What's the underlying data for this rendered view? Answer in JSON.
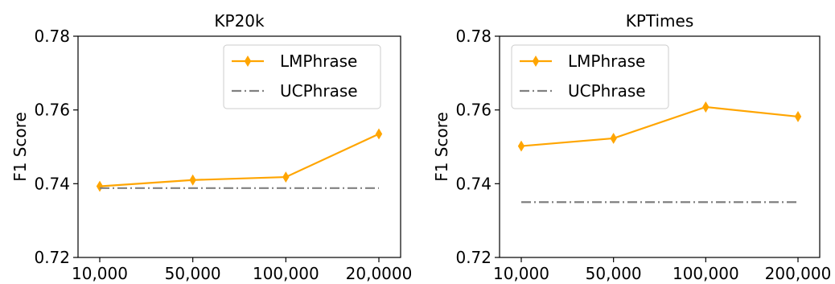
{
  "chart_data": [
    {
      "type": "line",
      "title": "KP20k",
      "xlabel": "",
      "ylabel": "F1 Score",
      "categories": [
        "10,000",
        "50,000",
        "100,000",
        "20,0000"
      ],
      "ylim": [
        0.72,
        0.78
      ],
      "yticks": [
        "0.72",
        "0.74",
        "0.76",
        "0.78"
      ],
      "series": [
        {
          "name": "LMPhrase",
          "values": [
            0.7393,
            0.741,
            0.7418,
            0.7535
          ],
          "color": "#FFA500",
          "style": "solid",
          "marker": "diamond"
        },
        {
          "name": "UCPhrase",
          "values": [
            0.7388,
            0.7388,
            0.7388,
            0.7388
          ],
          "color": "#808080",
          "style": "dashdot",
          "marker": "none"
        }
      ],
      "legend": "top-right",
      "grid": false
    },
    {
      "type": "line",
      "title": "KPTimes",
      "xlabel": "",
      "ylabel": "F1 Score",
      "categories": [
        "10,000",
        "50,000",
        "100,000",
        "200,000"
      ],
      "ylim": [
        0.72,
        0.78
      ],
      "yticks": [
        "0.72",
        "0.74",
        "0.76",
        "0.78"
      ],
      "series": [
        {
          "name": "LMPhrase",
          "values": [
            0.7502,
            0.7523,
            0.7608,
            0.7582
          ],
          "color": "#FFA500",
          "style": "solid",
          "marker": "diamond"
        },
        {
          "name": "UCPhrase",
          "values": [
            0.735,
            0.735,
            0.735,
            0.735
          ],
          "color": "#808080",
          "style": "dashdot",
          "marker": "none"
        }
      ],
      "legend": "top-left",
      "grid": false
    }
  ]
}
